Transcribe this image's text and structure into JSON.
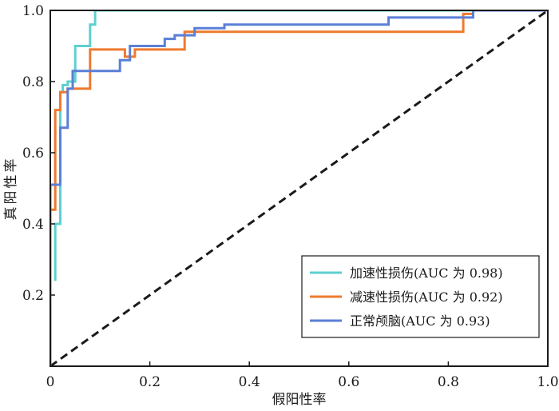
{
  "chart_data": {
    "type": "line",
    "xlabel": "假阳性率",
    "ylabel": "真阳性率",
    "xlim": [
      0,
      1
    ],
    "ylim": [
      0,
      1
    ],
    "x_ticks": [
      0,
      0.2,
      0.4,
      0.6,
      0.8,
      1.0
    ],
    "x_tick_labels": [
      "0",
      "0.2",
      "0.4",
      "0.6",
      "0.8",
      "1.0"
    ],
    "y_ticks": [
      0.2,
      0.4,
      0.6,
      0.8,
      1.0
    ],
    "y_tick_labels": [
      "0.2",
      "0.4",
      "0.6",
      "0.8",
      "1.0"
    ],
    "grid": false,
    "legend_position": "bottom-right",
    "diagonal": {
      "style": "dashed",
      "color": "#1a1a1a",
      "x": [
        0,
        1
      ],
      "y": [
        0,
        1
      ]
    },
    "series": [
      {
        "name": "加速性损伤(AUC 为 0.98)",
        "color": "#5ecfcf",
        "x": [
          0.01,
          0.01,
          0.02,
          0.02,
          0.025,
          0.025,
          0.035,
          0.035,
          0.05,
          0.05,
          0.08,
          0.08,
          0.09,
          0.09,
          1.0
        ],
        "y": [
          0.24,
          0.4,
          0.4,
          0.77,
          0.77,
          0.79,
          0.79,
          0.8,
          0.8,
          0.9,
          0.9,
          0.96,
          0.96,
          1.0,
          1.0
        ]
      },
      {
        "name": "减速性损伤(AUC 为 0.92)",
        "color": "#ee7a2e",
        "x": [
          0.0,
          0.01,
          0.01,
          0.02,
          0.02,
          0.035,
          0.035,
          0.08,
          0.08,
          0.15,
          0.15,
          0.17,
          0.17,
          0.27,
          0.27,
          0.83,
          0.83,
          0.85,
          0.85,
          1.0
        ],
        "y": [
          0.44,
          0.44,
          0.72,
          0.72,
          0.77,
          0.77,
          0.78,
          0.78,
          0.89,
          0.89,
          0.87,
          0.87,
          0.89,
          0.89,
          0.94,
          0.94,
          0.99,
          0.99,
          1.0,
          1.0
        ],
        "start_y": 0.0
      },
      {
        "name": "正常颅脑(AUC 为 0.93)",
        "color": "#5b7fd6",
        "x": [
          0.0,
          0.0,
          0.02,
          0.02,
          0.035,
          0.035,
          0.045,
          0.045,
          0.14,
          0.14,
          0.16,
          0.16,
          0.23,
          0.23,
          0.25,
          0.25,
          0.29,
          0.29,
          0.35,
          0.35,
          0.68,
          0.68,
          0.85,
          0.85,
          1.0
        ],
        "y": [
          0.0,
          0.51,
          0.51,
          0.67,
          0.67,
          0.78,
          0.78,
          0.83,
          0.83,
          0.86,
          0.86,
          0.9,
          0.9,
          0.92,
          0.92,
          0.93,
          0.93,
          0.95,
          0.95,
          0.96,
          0.96,
          0.98,
          0.98,
          1.0,
          1.0
        ]
      }
    ]
  }
}
